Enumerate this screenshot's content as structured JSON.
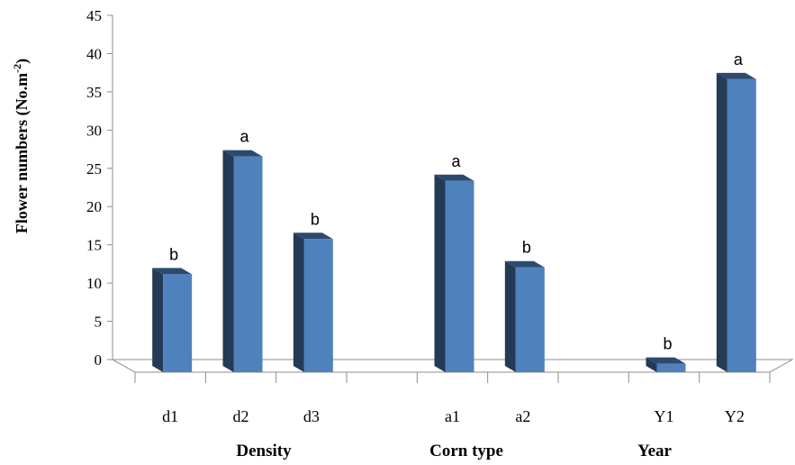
{
  "chart_data": {
    "type": "bar",
    "style": "3d-column",
    "ylabel_main": "Flower numbers (No.m",
    "ylabel_sup": "-2",
    "ylabel_end": ")",
    "ylim": [
      0,
      45
    ],
    "yticks": [
      "0",
      "5",
      "10",
      "15",
      "20",
      "25",
      "30",
      "35",
      "40",
      "45"
    ],
    "categories": [
      "d1",
      "d2",
      "d3",
      "",
      "a1",
      "a2",
      "",
      "Y1",
      "Y2"
    ],
    "values": [
      12.8,
      28.2,
      17.4,
      null,
      25.0,
      13.7,
      null,
      1.1,
      38.3
    ],
    "annotations": [
      "b",
      "a",
      "b",
      "",
      "a",
      "b",
      "",
      "b",
      "a"
    ],
    "groups": [
      {
        "label": "Density",
        "categories": [
          "d1",
          "d2",
          "d3"
        ]
      },
      {
        "label": "Corn type",
        "categories": [
          "a1",
          "a2"
        ]
      },
      {
        "label": "Year",
        "categories": [
          "Y1",
          "Y2"
        ]
      }
    ],
    "colors": {
      "bar_front": "#4f81bd",
      "bar_side": "#243a55",
      "bar_top": "#2c4a6e",
      "axis": "#8c8c8c"
    },
    "grid": false,
    "legend": "none"
  }
}
